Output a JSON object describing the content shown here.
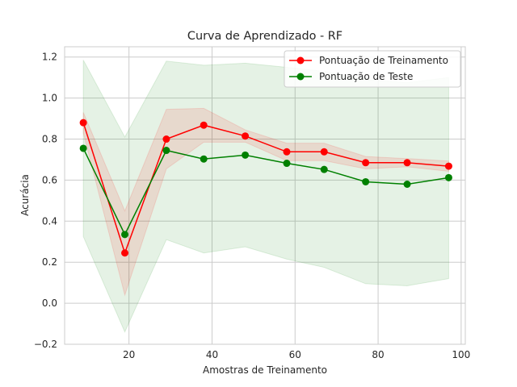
{
  "chart_data": {
    "type": "line",
    "title": "Curva de Aprendizado - RF",
    "xlabel": "Amostras de Treinamento",
    "ylabel": "Acurácia",
    "xlim": [
      4.5,
      101
    ],
    "ylim": [
      -0.2,
      1.25
    ],
    "xticks": [
      20,
      40,
      60,
      80,
      100
    ],
    "yticks": [
      -0.2,
      0.0,
      0.2,
      0.4,
      0.6,
      0.8,
      1.0,
      1.2
    ],
    "grid": true,
    "legend_position": "top-right",
    "x": [
      9,
      19,
      29,
      38,
      48,
      58,
      67,
      77,
      87,
      97
    ],
    "series": [
      {
        "name": "Pontuação de Treinamento",
        "color": "#ff0000",
        "band_color": "#ff0000",
        "values": [
          0.88,
          0.245,
          0.8,
          0.868,
          0.815,
          0.738,
          0.738,
          0.685,
          0.685,
          0.668
        ],
        "lower": [
          0.83,
          0.04,
          0.655,
          0.785,
          0.785,
          0.695,
          0.695,
          0.655,
          0.665,
          0.643
        ],
        "upper": [
          0.93,
          0.45,
          0.945,
          0.95,
          0.845,
          0.78,
          0.78,
          0.715,
          0.705,
          0.693
        ]
      },
      {
        "name": "Pontuação de Teste",
        "color": "#008000",
        "band_color": "#008000",
        "values": [
          0.755,
          0.335,
          0.745,
          0.703,
          0.722,
          0.682,
          0.652,
          0.592,
          0.58,
          0.612
        ],
        "lower": [
          0.325,
          -0.14,
          0.31,
          0.245,
          0.275,
          0.215,
          0.175,
          0.095,
          0.085,
          0.12
        ],
        "upper": [
          1.185,
          0.81,
          1.18,
          1.16,
          1.17,
          1.15,
          1.13,
          1.09,
          1.075,
          1.1
        ]
      }
    ]
  }
}
